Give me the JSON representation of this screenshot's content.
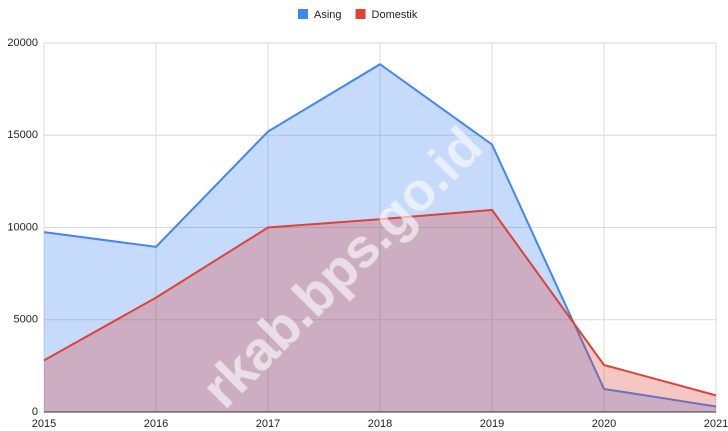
{
  "chart_data": {
    "type": "area",
    "categories": [
      "2015",
      "2016",
      "2017",
      "2018",
      "2019",
      "2020",
      "2021"
    ],
    "series": [
      {
        "name": "Asing",
        "color": "#4285f4",
        "values": [
          9750,
          8950,
          15200,
          18850,
          14500,
          1250,
          300
        ]
      },
      {
        "name": "Domestik",
        "color": "#db4437",
        "values": [
          2800,
          6200,
          10000,
          10450,
          10950,
          2550,
          900
        ]
      }
    ],
    "ylim": [
      0,
      20000
    ],
    "yticks": [
      0,
      5000,
      10000,
      15000,
      20000
    ],
    "grid": true,
    "legend": "top",
    "watermark": "rkab.bps.go.id"
  }
}
